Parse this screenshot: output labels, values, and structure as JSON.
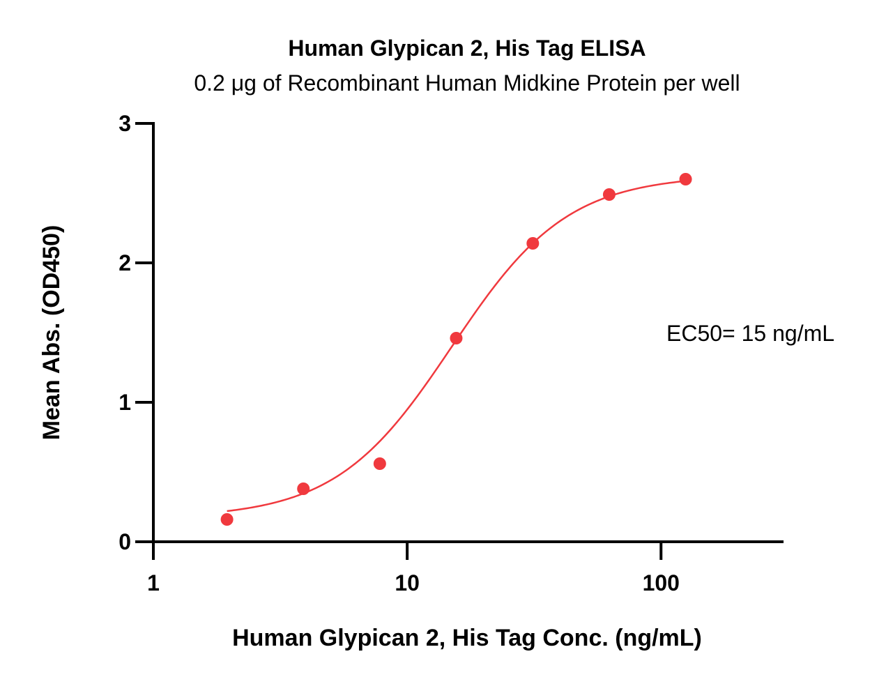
{
  "chart_data": {
    "type": "scatter",
    "title": "Human Glypican 2, His Tag ELISA",
    "subtitle": "0.2 μg of Recombinant Human Midkine Protein per well",
    "xlabel": "Human Glypican 2, His Tag Conc. (ng/mL)",
    "ylabel": "Mean Abs. (OD450)",
    "x_scale": "log",
    "xlim": [
      1,
      300
    ],
    "ylim": [
      0,
      3
    ],
    "x_ticks": [
      1,
      10,
      100
    ],
    "x_tick_labels": [
      "1",
      "10",
      "100"
    ],
    "y_ticks": [
      0,
      1,
      2,
      3
    ],
    "y_tick_labels": [
      "0",
      "1",
      "2",
      "3"
    ],
    "grid": false,
    "series": [
      {
        "x": [
          1.95,
          3.9,
          7.8,
          15.6,
          31.25,
          62.5,
          125
        ],
        "y": [
          0.16,
          0.38,
          0.56,
          1.46,
          2.14,
          2.49,
          2.6
        ],
        "color": "#f0393e",
        "fit": "4PL",
        "fit_params": {
          "bottom": 0.17,
          "top": 2.63,
          "ec50": 15,
          "hill": 1.9
        }
      }
    ],
    "annotation": "EC50= 15 ng/mL"
  }
}
